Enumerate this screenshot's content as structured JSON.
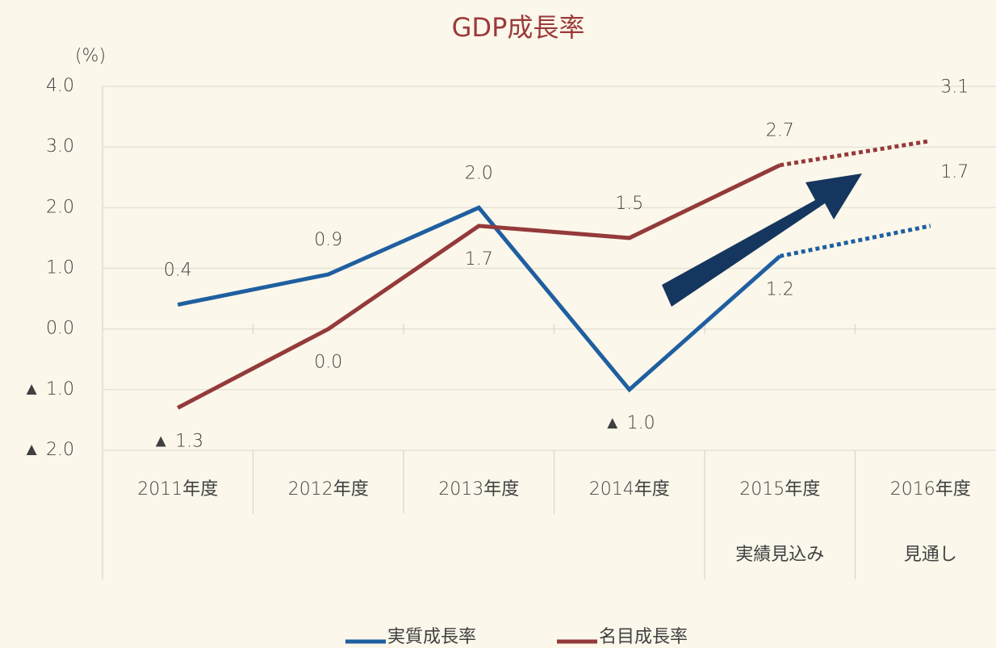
{
  "chart_data": {
    "type": "line",
    "title": "GDP成長率",
    "y_unit": "(%)",
    "categories": [
      "2011年度",
      "2012年度",
      "2013年度",
      "2014年度",
      "2015年度",
      "2016年度"
    ],
    "sublabels": [
      null,
      null,
      null,
      null,
      "実績見込み",
      "見通し"
    ],
    "projection_start": 4,
    "series": [
      {
        "name": "実質成長率",
        "color": "#1f5fa0",
        "values": [
          0.4,
          0.9,
          2.0,
          -1.0,
          1.2,
          1.7
        ],
        "value_labels": [
          "0.4",
          "0.9",
          "2.0",
          "▲ 1.0",
          "1.2",
          "1.7"
        ]
      },
      {
        "name": "名目成長率",
        "color": "#943a3a",
        "values": [
          -1.3,
          0.0,
          1.7,
          1.5,
          2.7,
          3.1
        ],
        "value_labels": [
          "▲ 1.3",
          "0.0",
          "1.7",
          "1.5",
          "2.7",
          "3.1"
        ]
      }
    ],
    "ylim": [
      -2,
      4
    ],
    "yticks": [
      {
        "value": 4,
        "label": "4.0"
      },
      {
        "value": 3,
        "label": "3.0"
      },
      {
        "value": 2,
        "label": "2.0"
      },
      {
        "value": 1,
        "label": "1.0"
      },
      {
        "value": 0,
        "label": "0.0"
      },
      {
        "value": -1,
        "label": "▲ 1.0"
      },
      {
        "value": -2,
        "label": "▲ 2.0"
      }
    ],
    "grid": true,
    "legend": "bottom"
  }
}
